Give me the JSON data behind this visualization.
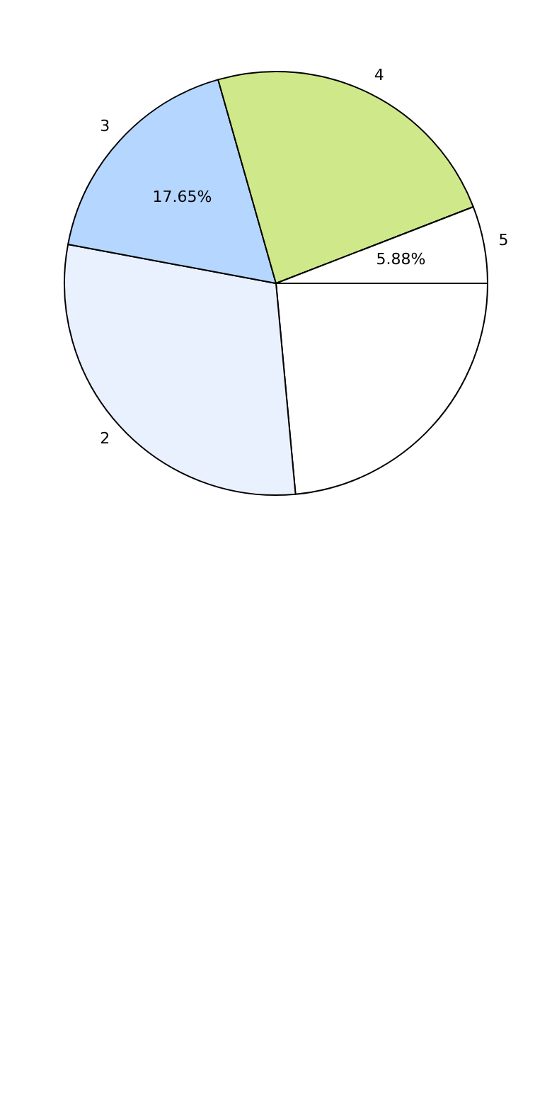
{
  "chart_data": {
    "type": "pie",
    "categories": [
      null,
      "2",
      "3",
      "4",
      "5"
    ],
    "values": [
      23.53,
      29.41,
      17.65,
      23.53,
      5.88
    ],
    "colors": [
      "#ffffff",
      "#eaf1fe",
      "#b5d6fe",
      "#cfe98a",
      "#ffffff"
    ],
    "value_labels": [
      null,
      null,
      "17.65%",
      null,
      "5.88%"
    ],
    "legend": false
  }
}
